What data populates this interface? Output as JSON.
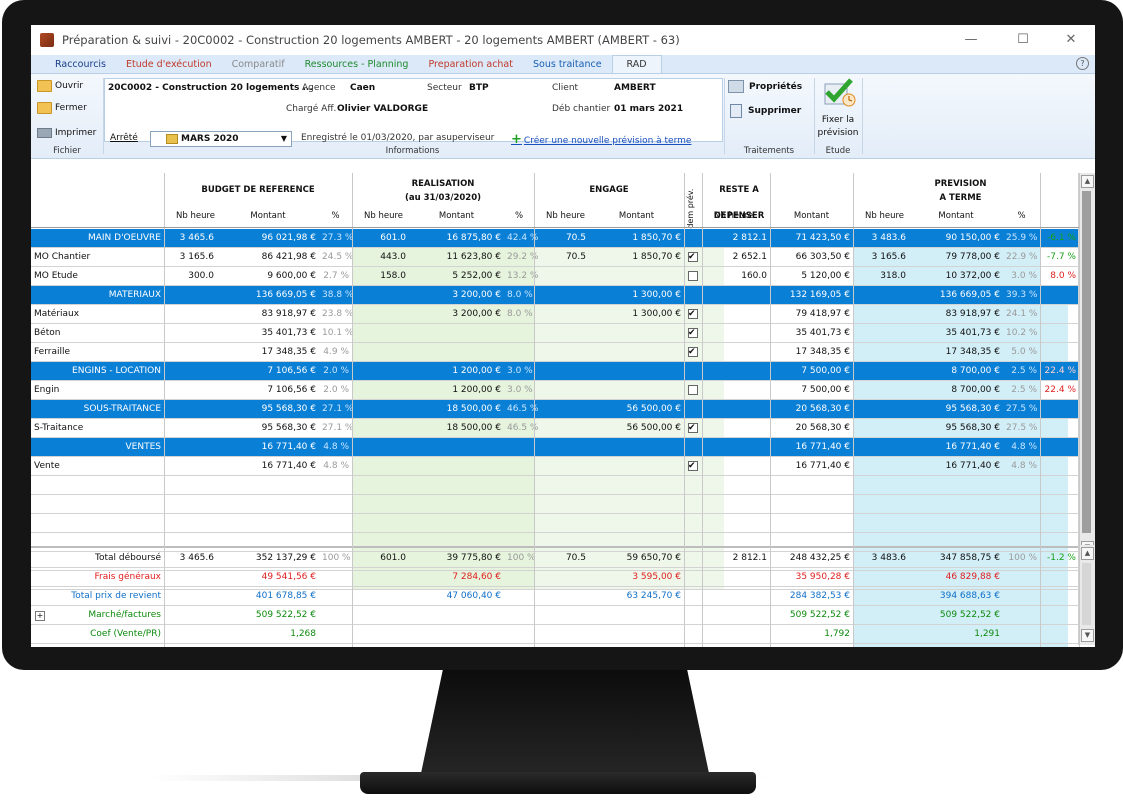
{
  "window": {
    "title": "Préparation & suivi - 20C0002 - Construction 20 logements AMBERT - 20 logements AMBERT (AMBERT - 63)",
    "controls": {
      "minimize": "—",
      "maximize": "☐",
      "close": "✕"
    }
  },
  "menu": {
    "items": [
      {
        "label": "Raccourcis",
        "color": "#1a3f8a"
      },
      {
        "label": "Etude d'exécution",
        "color": "#c0392b"
      },
      {
        "label": "Comparatif",
        "color": "#8a8a8a"
      },
      {
        "label": "Ressources - Planning",
        "color": "#1e8a2e"
      },
      {
        "label": "Preparation achat",
        "color": "#c0392b"
      },
      {
        "label": "Sous traitance",
        "color": "#1a5fb0"
      },
      {
        "label": "RAD",
        "color": "#333333"
      }
    ],
    "help": "?"
  },
  "ribbon": {
    "fichier": {
      "open": "Ouvrir",
      "close": "Fermer",
      "print": "Imprimer",
      "label": "Fichier"
    },
    "info": {
      "affaire": "20C0002 - Construction 20 logements ...",
      "agence_label": "Agence",
      "agence": "Caen",
      "secteur_label": "Secteur",
      "secteur": "BTP",
      "client_label": "Client",
      "client": "AMBERT",
      "charge_label": "Chargé Aff.",
      "charge": "Olivier VALDORGE",
      "deb_label": "Déb chantier",
      "deb": "01 mars 2021",
      "arrete_label": "Arrêté",
      "arrete_value": "MARS 2020",
      "registered": "Enregistré le 01/03/2020, par asuperviseur",
      "new_link": "Créer une nouvelle prévision à terme",
      "label": "Informations"
    },
    "traitements": {
      "props": "Propriétés",
      "delete": "Supprimer",
      "label": "Traitements"
    },
    "etude": {
      "fix": "Fixer la prévision",
      "label": "Etude"
    }
  },
  "grid": {
    "groups": {
      "budget": "BUDGET DE REFERENCE",
      "realisation": "REALISATION",
      "realisation_sub": "(au 31/03/2020)",
      "engage": "ENGAGE",
      "idem": "Idem prév.",
      "reste": "RESTE A DEPENSER",
      "prevision": "PREVISION",
      "prevision_sub": "A TERME"
    },
    "sub": {
      "nb": "Nb heure",
      "montant": "Montant",
      "pct": "%"
    },
    "rows": [
      {
        "type": "cat",
        "label": "MAIN D'OEUVRE",
        "b_nb": "3 465.6",
        "b_m": "96 021,98 €",
        "b_p": "27.3 %",
        "r_nb": "601.0",
        "r_m": "16 875,80 €",
        "r_p": "42.4 %",
        "e_nb": "70.5",
        "e_m": "1 850,70 €",
        "chk": "",
        "s_nb": "2 812.1",
        "s_m": "71 423,50 €",
        "p_nb": "3 483.6",
        "p_m": "90 150,00 €",
        "p_p": "25.9 %",
        "ecart": "-6.1 %",
        "ecart_cls": "green"
      },
      {
        "type": "line",
        "label": "MO Chantier",
        "b_nb": "3 165.6",
        "b_m": "86 421,98 €",
        "b_p": "24.5 %",
        "r_nb": "443.0",
        "r_m": "11 623,80 €",
        "r_p": "29.2 %",
        "e_nb": "70.5",
        "e_m": "1 850,70 €",
        "chk": "on",
        "s_nb": "2 652.1",
        "s_m": "66 303,50 €",
        "p_nb": "3 165.6",
        "p_m": "79 778,00 €",
        "p_p": "22.9 %",
        "ecart": "-7.7 %",
        "ecart_cls": "green"
      },
      {
        "type": "line",
        "label": "MO Etude",
        "b_nb": "300.0",
        "b_m": "9 600,00 €",
        "b_p": "2.7 %",
        "r_nb": "158.0",
        "r_m": "5 252,00 €",
        "r_p": "13.2 %",
        "e_nb": "",
        "e_m": "",
        "chk": "off",
        "s_nb": "160.0",
        "s_m": "5 120,00 €",
        "p_nb": "318.0",
        "p_m": "10 372,00 €",
        "p_p": "3.0 %",
        "ecart": "8.0 %",
        "ecart_cls": "red"
      },
      {
        "type": "cat",
        "label": "MATERIAUX",
        "b_nb": "",
        "b_m": "136 669,05 €",
        "b_p": "38.8 %",
        "r_nb": "",
        "r_m": "3 200,00 €",
        "r_p": "8.0 %",
        "e_nb": "",
        "e_m": "1 300,00 €",
        "chk": "",
        "s_nb": "",
        "s_m": "132 169,05 €",
        "p_nb": "",
        "p_m": "136 669,05 €",
        "p_p": "39.3 %",
        "ecart": "",
        "ecart_cls": ""
      },
      {
        "type": "line",
        "label": "Matériaux",
        "b_nb": "",
        "b_m": "83 918,97 €",
        "b_p": "23.8 %",
        "r_nb": "",
        "r_m": "3 200,00 €",
        "r_p": "8.0 %",
        "e_nb": "",
        "e_m": "1 300,00 €",
        "chk": "on",
        "s_nb": "",
        "s_m": "79 418,97 €",
        "p_nb": "",
        "p_m": "83 918,97 €",
        "p_p": "24.1 %",
        "ecart": "",
        "ecart_cls": ""
      },
      {
        "type": "line",
        "label": "Béton",
        "b_nb": "",
        "b_m": "35 401,73 €",
        "b_p": "10.1 %",
        "r_nb": "",
        "r_m": "",
        "r_p": "",
        "e_nb": "",
        "e_m": "",
        "chk": "on",
        "s_nb": "",
        "s_m": "35 401,73 €",
        "p_nb": "",
        "p_m": "35 401,73 €",
        "p_p": "10.2 %",
        "ecart": "",
        "ecart_cls": ""
      },
      {
        "type": "line",
        "label": "Ferraille",
        "b_nb": "",
        "b_m": "17 348,35 €",
        "b_p": "4.9 %",
        "r_nb": "",
        "r_m": "",
        "r_p": "",
        "e_nb": "",
        "e_m": "",
        "chk": "on",
        "s_nb": "",
        "s_m": "17 348,35 €",
        "p_nb": "",
        "p_m": "17 348,35 €",
        "p_p": "5.0 %",
        "ecart": "",
        "ecart_cls": ""
      },
      {
        "type": "cat",
        "label": "ENGINS - LOCATION",
        "b_nb": "",
        "b_m": "7 106,56 €",
        "b_p": "2.0 %",
        "r_nb": "",
        "r_m": "1 200,00 €",
        "r_p": "3.0 %",
        "e_nb": "",
        "e_m": "",
        "chk": "",
        "s_nb": "",
        "s_m": "7 500,00 €",
        "p_nb": "",
        "p_m": "8 700,00 €",
        "p_p": "2.5 %",
        "ecart": "22.4 %",
        "ecart_cls": "catred"
      },
      {
        "type": "line",
        "label": "Engin",
        "b_nb": "",
        "b_m": "7 106,56 €",
        "b_p": "2.0 %",
        "r_nb": "",
        "r_m": "1 200,00 €",
        "r_p": "3.0 %",
        "e_nb": "",
        "e_m": "",
        "chk": "off",
        "s_nb": "",
        "s_m": "7 500,00 €",
        "p_nb": "",
        "p_m": "8 700,00 €",
        "p_p": "2.5 %",
        "ecart": "22.4 %",
        "ecart_cls": "red"
      },
      {
        "type": "cat",
        "label": "SOUS-TRAITANCE",
        "b_nb": "",
        "b_m": "95 568,30 €",
        "b_p": "27.1 %",
        "r_nb": "",
        "r_m": "18 500,00 €",
        "r_p": "46.5 %",
        "e_nb": "",
        "e_m": "56 500,00 €",
        "chk": "",
        "s_nb": "",
        "s_m": "20 568,30 €",
        "p_nb": "",
        "p_m": "95 568,30 €",
        "p_p": "27.5 %",
        "ecart": "",
        "ecart_cls": ""
      },
      {
        "type": "line",
        "label": "S-Traitance",
        "b_nb": "",
        "b_m": "95 568,30 €",
        "b_p": "27.1 %",
        "r_nb": "",
        "r_m": "18 500,00 €",
        "r_p": "46.5 %",
        "e_nb": "",
        "e_m": "56 500,00 €",
        "chk": "on",
        "s_nb": "",
        "s_m": "20 568,30 €",
        "p_nb": "",
        "p_m": "95 568,30 €",
        "p_p": "27.5 %",
        "ecart": "",
        "ecart_cls": ""
      },
      {
        "type": "cat",
        "label": "VENTES",
        "b_nb": "",
        "b_m": "16 771,40 €",
        "b_p": "4.8 %",
        "r_nb": "",
        "r_m": "",
        "r_p": "",
        "e_nb": "",
        "e_m": "",
        "chk": "",
        "s_nb": "",
        "s_m": "16 771,40 €",
        "p_nb": "",
        "p_m": "16 771,40 €",
        "p_p": "4.8 %",
        "ecart": "",
        "ecart_cls": ""
      },
      {
        "type": "line",
        "label": "Vente",
        "b_nb": "",
        "b_m": "16 771,40 €",
        "b_p": "4.8 %",
        "r_nb": "",
        "r_m": "",
        "r_p": "",
        "e_nb": "",
        "e_m": "",
        "chk": "on",
        "s_nb": "",
        "s_m": "16 771,40 €",
        "p_nb": "",
        "p_m": "16 771,40 €",
        "p_p": "4.8 %",
        "ecart": "",
        "ecart_cls": ""
      }
    ],
    "totals": [
      {
        "label": "Total déboursé",
        "cls": "",
        "b_nb": "3 465.6",
        "b_m": "352 137,29 €",
        "b_p": "100 %",
        "r_nb": "601.0",
        "r_m": "39 775,80 €",
        "r_p": "100 %",
        "e_nb": "70.5",
        "e_m": "59 650,70 €",
        "s_nb": "2 812.1",
        "s_m": "248 432,25 €",
        "p_nb": "3 483.6",
        "p_m": "347 858,75 €",
        "p_p": "100 %",
        "ecart": "-1.2 %",
        "ecart_cls": "green"
      },
      {
        "label": "Frais généraux",
        "cls": "red",
        "b_nb": "",
        "b_m": "49 541,56 €",
        "b_p": "",
        "r_nb": "",
        "r_m": "7 284,60 €",
        "r_p": "",
        "e_nb": "",
        "e_m": "3 595,00 €",
        "s_nb": "",
        "s_m": "35 950,28 €",
        "p_nb": "",
        "p_m": "46 829,88 €",
        "p_p": "",
        "ecart": "",
        "ecart_cls": ""
      },
      {
        "label": "Total prix de revient",
        "cls": "blue",
        "b_nb": "",
        "b_m": "401 678,85 €",
        "b_p": "",
        "r_nb": "",
        "r_m": "47 060,40 €",
        "r_p": "",
        "e_nb": "",
        "e_m": "63 245,70 €",
        "s_nb": "",
        "s_m": "284 382,53 €",
        "p_nb": "",
        "p_m": "394 688,63 €",
        "p_p": "",
        "ecart": "",
        "ecart_cls": ""
      },
      {
        "label": "Marché/factures",
        "cls": "darkgreen",
        "b_nb": "",
        "b_m": "509 522,52 €",
        "b_p": "",
        "r_nb": "",
        "r_m": "",
        "r_p": "",
        "e_nb": "",
        "e_m": "",
        "s_nb": "",
        "s_m": "509 522,52 €",
        "p_nb": "",
        "p_m": "509 522,52 €",
        "p_p": "",
        "ecart": "",
        "ecart_cls": "",
        "expand": "+"
      },
      {
        "label": "Coef (Vente/PR)",
        "cls": "darkgreen",
        "b_nb": "",
        "b_m": "1,268",
        "b_p": "",
        "r_nb": "",
        "r_m": "",
        "r_p": "",
        "e_nb": "",
        "e_m": "",
        "s_nb": "",
        "s_m": "1,792",
        "p_nb": "",
        "p_m": "1,291",
        "p_p": "",
        "ecart": "",
        "ecart_cls": ""
      }
    ]
  },
  "colors": {
    "category_row": "#0a7fd6",
    "realisation_bg": "#e6f3dd",
    "prevision_bg": "#d2eef7"
  }
}
